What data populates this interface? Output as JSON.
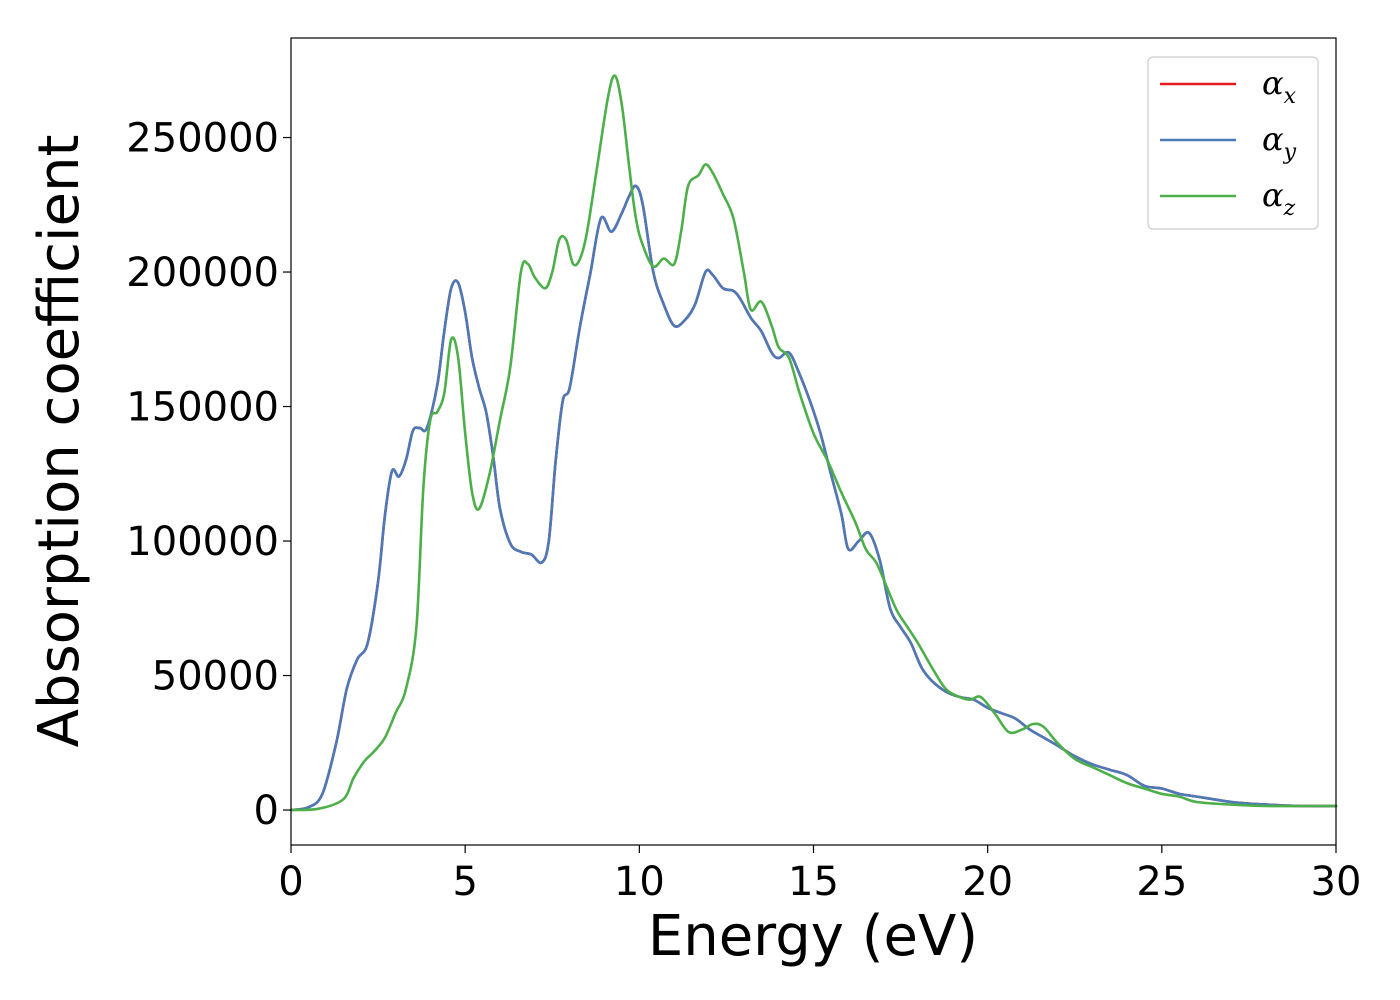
{
  "chart_data": {
    "type": "line",
    "xlabel": "Energy (eV)",
    "ylabel": "Absorption coefficient",
    "xlim": [
      0,
      30
    ],
    "ylim": [
      -13000,
      287000
    ],
    "xticks": [
      "0",
      "5",
      "10",
      "15",
      "20",
      "25",
      "30"
    ],
    "yticks": [
      "0",
      "50000",
      "100000",
      "150000",
      "200000",
      "250000"
    ],
    "grid": false,
    "legend_position": "top-right",
    "series": [
      {
        "name": "α_x",
        "legend_symbol": "α",
        "legend_sub": "x",
        "color": "#e41a1c",
        "x": [
          0,
          0.5,
          0.9,
          1.3,
          1.6,
          1.9,
          2.2,
          2.5,
          2.7,
          2.9,
          3.1,
          3.3,
          3.5,
          3.7,
          3.9,
          4.2,
          4.4,
          4.6,
          4.8,
          5.0,
          5.2,
          5.4,
          5.6,
          5.8,
          6.0,
          6.3,
          6.6,
          6.9,
          7.2,
          7.4,
          7.6,
          7.8,
          8.0,
          8.3,
          8.6,
          8.9,
          9.2,
          9.5,
          9.7,
          9.9,
          10.1,
          10.4,
          10.7,
          11.0,
          11.3,
          11.6,
          11.9,
          12.1,
          12.4,
          12.7,
          12.9,
          13.2,
          13.5,
          13.8,
          14.0,
          14.3,
          14.6,
          14.9,
          15.2,
          15.5,
          15.8,
          16.0,
          16.3,
          16.6,
          16.9,
          17.2,
          17.5,
          17.8,
          18.1,
          18.4,
          18.8,
          19.2,
          19.6,
          20.0,
          20.4,
          20.8,
          21.2,
          21.6,
          22.0,
          22.5,
          23.0,
          23.5,
          24.0,
          24.5,
          25.0,
          25.5,
          26.0,
          27.0,
          28.0,
          29.0,
          30.0
        ],
        "y": [
          0,
          1000,
          6000,
          25000,
          45000,
          56000,
          62000,
          85000,
          110000,
          126000,
          124000,
          130000,
          141000,
          142000,
          142000,
          158000,
          178000,
          194000,
          196000,
          185000,
          168000,
          157000,
          148000,
          132000,
          112000,
          99000,
          96000,
          95000,
          92000,
          100000,
          130000,
          152000,
          157000,
          180000,
          200000,
          220000,
          215000,
          222000,
          228000,
          232000,
          225000,
          200000,
          188000,
          180000,
          182000,
          188000,
          200000,
          199000,
          194000,
          193000,
          190000,
          183000,
          178000,
          170000,
          168000,
          170000,
          162000,
          152000,
          140000,
          125000,
          110000,
          97000,
          100000,
          103000,
          93000,
          75000,
          68000,
          62000,
          53000,
          48000,
          44000,
          42000,
          41000,
          38000,
          36000,
          34000,
          30000,
          27000,
          24000,
          20000,
          17000,
          15000,
          13000,
          9000,
          8000,
          6000,
          5000,
          3000,
          2000,
          1500,
          1500
        ]
      },
      {
        "name": "α_y",
        "legend_symbol": "α",
        "legend_sub": "y",
        "color": "#4a7ab8",
        "x": [
          0,
          0.5,
          0.9,
          1.3,
          1.6,
          1.9,
          2.2,
          2.5,
          2.7,
          2.9,
          3.1,
          3.3,
          3.5,
          3.7,
          3.9,
          4.2,
          4.4,
          4.6,
          4.8,
          5.0,
          5.2,
          5.4,
          5.6,
          5.8,
          6.0,
          6.3,
          6.6,
          6.9,
          7.2,
          7.4,
          7.6,
          7.8,
          8.0,
          8.3,
          8.6,
          8.9,
          9.2,
          9.5,
          9.7,
          9.9,
          10.1,
          10.4,
          10.7,
          11.0,
          11.3,
          11.6,
          11.9,
          12.1,
          12.4,
          12.7,
          12.9,
          13.2,
          13.5,
          13.8,
          14.0,
          14.3,
          14.6,
          14.9,
          15.2,
          15.5,
          15.8,
          16.0,
          16.3,
          16.6,
          16.9,
          17.2,
          17.5,
          17.8,
          18.1,
          18.4,
          18.8,
          19.2,
          19.6,
          20.0,
          20.4,
          20.8,
          21.2,
          21.6,
          22.0,
          22.5,
          23.0,
          23.5,
          24.0,
          24.5,
          25.0,
          25.5,
          26.0,
          27.0,
          28.0,
          29.0,
          30.0
        ],
        "y": [
          0,
          1000,
          6000,
          25000,
          45000,
          56000,
          62000,
          85000,
          110000,
          126000,
          124000,
          130000,
          141000,
          142000,
          142000,
          158000,
          178000,
          194000,
          196000,
          185000,
          168000,
          157000,
          148000,
          132000,
          112000,
          99000,
          96000,
          95000,
          92000,
          100000,
          130000,
          152000,
          157000,
          180000,
          200000,
          220000,
          215000,
          222000,
          228000,
          232000,
          225000,
          200000,
          188000,
          180000,
          182000,
          188000,
          200000,
          199000,
          194000,
          193000,
          190000,
          183000,
          178000,
          170000,
          168000,
          170000,
          162000,
          152000,
          140000,
          125000,
          110000,
          97000,
          100000,
          103000,
          93000,
          75000,
          68000,
          62000,
          53000,
          48000,
          44000,
          42000,
          41000,
          38000,
          36000,
          34000,
          30000,
          27000,
          24000,
          20000,
          17000,
          15000,
          13000,
          9000,
          8000,
          6000,
          5000,
          3000,
          2000,
          1500,
          1500
        ]
      },
      {
        "name": "α_z",
        "legend_symbol": "α",
        "legend_sub": "z",
        "color": "#4daf4a",
        "x": [
          0,
          0.8,
          1.5,
          1.8,
          2.1,
          2.4,
          2.7,
          3.0,
          3.3,
          3.6,
          3.8,
          4.0,
          4.2,
          4.4,
          4.6,
          4.8,
          5.0,
          5.2,
          5.4,
          5.7,
          6.0,
          6.3,
          6.6,
          6.8,
          7.0,
          7.3,
          7.5,
          7.7,
          7.9,
          8.1,
          8.3,
          8.5,
          8.8,
          9.1,
          9.3,
          9.5,
          9.7,
          9.9,
          10.1,
          10.4,
          10.7,
          11.0,
          11.2,
          11.4,
          11.7,
          11.9,
          12.1,
          12.4,
          12.7,
          13.0,
          13.2,
          13.5,
          13.8,
          14.0,
          14.3,
          14.6,
          15.0,
          15.4,
          15.8,
          16.2,
          16.5,
          16.8,
          17.1,
          17.4,
          17.7,
          18.0,
          18.4,
          18.8,
          19.2,
          19.5,
          19.8,
          20.2,
          20.6,
          21.0,
          21.3,
          21.6,
          22.0,
          22.5,
          23.0,
          23.5,
          24.0,
          24.5,
          25.0,
          25.5,
          26.0,
          27.0,
          28.0,
          29.0,
          30.0
        ],
        "y": [
          0,
          500,
          4000,
          12000,
          18000,
          22000,
          27000,
          36000,
          45000,
          68000,
          120000,
          145000,
          148000,
          155000,
          175000,
          168000,
          140000,
          118000,
          112000,
          125000,
          145000,
          165000,
          200000,
          203000,
          198000,
          194000,
          200000,
          212000,
          212000,
          203000,
          205000,
          215000,
          240000,
          265000,
          273000,
          262000,
          240000,
          220000,
          210000,
          202000,
          205000,
          203000,
          215000,
          232000,
          236000,
          240000,
          237000,
          229000,
          220000,
          200000,
          186000,
          189000,
          180000,
          172000,
          168000,
          155000,
          140000,
          130000,
          118000,
          107000,
          97000,
          92000,
          83000,
          74000,
          68000,
          62000,
          53000,
          45000,
          42000,
          41000,
          42000,
          36000,
          29000,
          30000,
          32000,
          31000,
          25000,
          19000,
          16000,
          13000,
          10000,
          8000,
          6000,
          5000,
          3000,
          2000,
          1500,
          1500,
          1500
        ]
      }
    ]
  }
}
